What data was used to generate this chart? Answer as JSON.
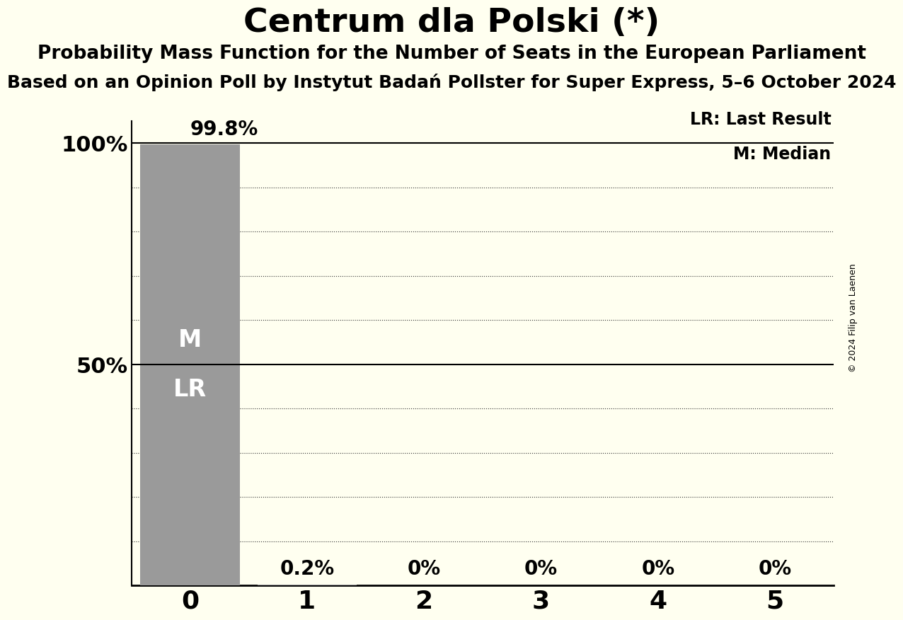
{
  "title": "Centrum dla Polski (*)",
  "subtitle1": "Probability Mass Function for the Number of Seats in the European Parliament",
  "subtitle2": "Based on an Opinion Poll by Instytut Badań Pollster for Super Express, 5–6 October 2024",
  "copyright": "© 2024 Filip van Laenen",
  "seats": [
    0,
    1,
    2,
    3,
    4,
    5
  ],
  "probabilities": [
    99.8,
    0.2,
    0.0,
    0.0,
    0.0,
    0.0
  ],
  "bar_color": "#9a9a9a",
  "background_color": "#fffff0",
  "median": 0,
  "last_result": 0,
  "legend_lr": "LR: Last Result",
  "legend_m": "M: Median",
  "ytick_values": [
    0,
    10,
    20,
    30,
    40,
    50,
    60,
    70,
    80,
    90,
    100
  ],
  "ylim": [
    0,
    105
  ],
  "xlim": [
    -0.5,
    5.5
  ],
  "bar_width": 0.85,
  "title_fontsize": 34,
  "subtitle_fontsize": 19,
  "tick_fontsize": 22,
  "bar_label_fontsize": 20,
  "legend_fontsize": 17,
  "ml_fontsize": 24,
  "copyright_fontsize": 9
}
